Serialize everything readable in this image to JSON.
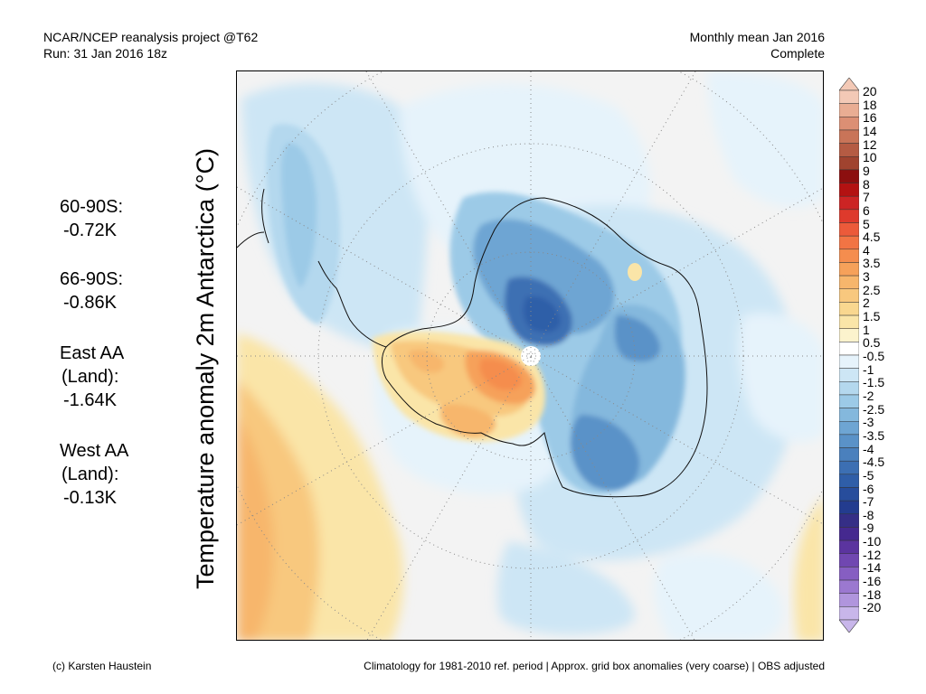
{
  "header": {
    "left_line1": "NCAR/NCEP reanalysis project @T62",
    "left_line2": "Run: 31 Jan 2016 18z",
    "right_line1": "Monthly mean Jan 2016",
    "right_line2": "Complete"
  },
  "y_label": "Temperature anomaly 2m Antarctica (°C)",
  "stats": [
    {
      "label": "60-90S:",
      "value": "-0.72K"
    },
    {
      "label": "66-90S:",
      "value": "-0.86K"
    },
    {
      "label": "East AA",
      "sublabel": "(Land):",
      "value": "-1.64K"
    },
    {
      "label": "West AA",
      "sublabel": "(Land):",
      "value": "-0.13K"
    }
  ],
  "colorbar": {
    "labels": [
      "20",
      "18",
      "16",
      "14",
      "12",
      "10",
      "9",
      "8",
      "7",
      "6",
      "5",
      "4.5",
      "4",
      "3.5",
      "3",
      "2.5",
      "2",
      "1.5",
      "1",
      "0.5",
      "-0.5",
      "-1",
      "-1.5",
      "-2",
      "-2.5",
      "-3",
      "-3.5",
      "-4",
      "-4.5",
      "-5",
      "-6",
      "-7",
      "-8",
      "-9",
      "-10",
      "-12",
      "-14",
      "-16",
      "-18",
      "-20"
    ],
    "colors": [
      "#f3c9b6",
      "#e9ad93",
      "#dc8f74",
      "#c97458",
      "#b55b43",
      "#a0432f",
      "#8c0f0f",
      "#b31212",
      "#cc2424",
      "#de3a2c",
      "#ec5a3a",
      "#f27444",
      "#f58d4e",
      "#f6a15a",
      "#f7b66c",
      "#f8c87e",
      "#f9d78f",
      "#fae5a8",
      "#fcf3cd",
      "#ffffff",
      "#e6f3fb",
      "#cde6f5",
      "#b4d8ee",
      "#9ccae7",
      "#84b8dd",
      "#6ea5d3",
      "#5a92c8",
      "#4a80bd",
      "#3c6fb3",
      "#2f5ea8",
      "#274d9c",
      "#233c8f",
      "#352e86",
      "#45298f",
      "#5b349f",
      "#7047b1",
      "#865ec2",
      "#9b78d0",
      "#b095dd",
      "#c8b6ea"
    ]
  },
  "footer": {
    "left": "(c) Karsten Haustein",
    "right": "Climatology for 1981-2010 ref. period | Approx. grid box anomalies (very coarse) | OBS adjusted"
  }
}
